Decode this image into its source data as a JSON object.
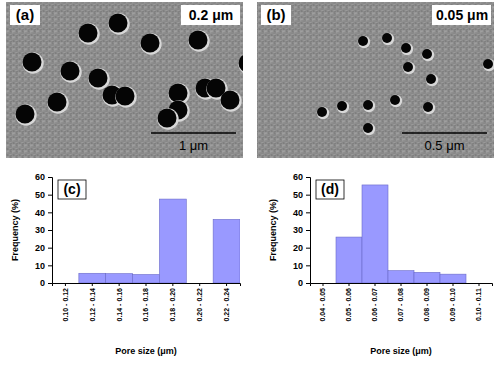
{
  "images": [
    {
      "label": "(a)",
      "pore_label": "0.2 μm",
      "scale_label": "1 μm"
    },
    {
      "label": "(b)",
      "pore_label": "0.05 μm",
      "scale_label": "0.5 μm"
    }
  ],
  "chart_data": [
    {
      "type": "bar",
      "title": "(c)",
      "x_label": "Pore size (μm)",
      "y_label": "Frequency (%)",
      "categories": [
        "0.10 - 0.12",
        "0.12 - 0.14",
        "0.14 - 0.16",
        "0.16 - 0.18",
        "0.18 - 0.20",
        "0.20 - 0.22",
        "0.22 - 0.24"
      ],
      "values": [
        0,
        5.5,
        5.3,
        4.8,
        47.5,
        0,
        36
      ],
      "color": "#9999ff",
      "ylim": [
        0,
        60
      ],
      "yticks": [
        0,
        10,
        20,
        30,
        40,
        50,
        60
      ],
      "grid": false
    },
    {
      "type": "bar",
      "title": "(d)",
      "x_label": "Pore size (μm)",
      "y_label": "Frequency (%)",
      "categories": [
        "0.04 - 0.05",
        "0.05 - 0.06",
        "0.06 - 0.07",
        "0.07 - 0.08",
        "0.08 - 0.09",
        "0.09 - 0.10",
        "0.10 - 0.11"
      ],
      "values": [
        0,
        26,
        55.5,
        7,
        6,
        5,
        0
      ],
      "color": "#9999ff",
      "ylim": [
        0,
        60
      ],
      "yticks": [
        0,
        10,
        20,
        30,
        40,
        50,
        60
      ],
      "grid": false
    }
  ]
}
